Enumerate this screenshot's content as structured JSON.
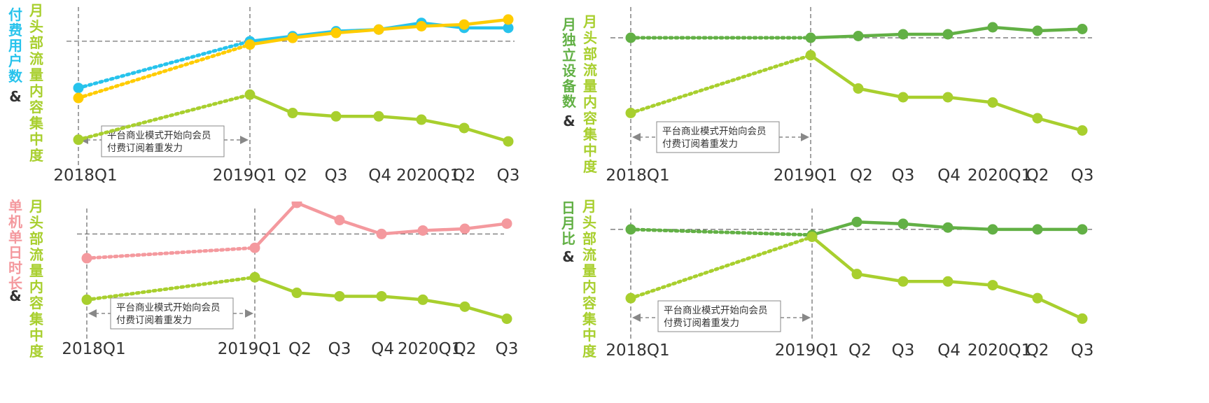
{
  "colors": {
    "green_main": "#a8cf2e",
    "green_dark": "#62b045",
    "cyan": "#27c3ec",
    "yellow": "#ffcc00",
    "pink": "#f4999e",
    "guide": "#666666"
  },
  "chart_data": [
    {
      "type": "line",
      "annotation": [
        "平台商业模式开始向会员",
        "付费订阅着重发力"
      ],
      "x_tick_labels": [
        "2018Q1",
        "2019Q1",
        "Q2",
        "Q3",
        "Q4",
        "2020Q1",
        "Q2",
        "Q3"
      ],
      "y_label_left": "付费用户数",
      "y_label_join": "&",
      "y_label_right": "月头部流量内容集中度",
      "series": [
        {
          "key": "s1",
          "values": [
            72,
            100,
            103,
            106,
            107,
            111,
            108,
            108
          ],
          "color": "#27c3ec"
        },
        {
          "key": "s2",
          "values": [
            66,
            98,
            102,
            105,
            107,
            109,
            110,
            113
          ],
          "color": "#ffcc00"
        },
        {
          "key": "s3",
          "values": [
            41,
            68,
            57,
            55,
            55,
            53,
            48,
            40
          ],
          "color": "#a8cf2e"
        }
      ]
    },
    {
      "type": "line",
      "annotation": [
        "平台商业模式开始向会员",
        "付费订阅着重发力"
      ],
      "x_tick_labels": [
        "2018Q1",
        "2019Q1",
        "Q2",
        "Q3",
        "Q4",
        "2020Q1",
        "Q2",
        "Q3"
      ],
      "y_label_left": "月独立设备数",
      "y_label_join": "&",
      "y_label_right": "月头部流量内容集中度",
      "series": [
        {
          "key": "s1",
          "values": [
            100,
            100,
            101,
            102,
            102,
            106,
            104,
            105
          ],
          "color": "#62b045"
        },
        {
          "key": "s2",
          "values": [
            57,
            90,
            71,
            66,
            66,
            63,
            54,
            47
          ],
          "color": "#a8cf2e"
        }
      ]
    },
    {
      "type": "line",
      "annotation": [
        "平台商业模式开始向会员",
        "付费订阅着重发力"
      ],
      "x_tick_labels": [
        "2018Q1",
        "2019Q1",
        "Q2",
        "Q3",
        "Q4",
        "2020Q1",
        "Q2",
        "Q3"
      ],
      "y_label_left": "单机单日时长",
      "y_label_join": "&",
      "y_label_right": "月头部流量内容集中度",
      "series": [
        {
          "key": "s1",
          "values": [
            90,
            96,
            122,
            112,
            104,
            106,
            107,
            110
          ],
          "color": "#f4999e"
        },
        {
          "key": "s2",
          "values": [
            66,
            79,
            70,
            68,
            68,
            66,
            62,
            55
          ],
          "color": "#a8cf2e"
        }
      ]
    },
    {
      "type": "line",
      "annotation": [
        "平台商业模式开始向会员",
        "付费订阅着重发力"
      ],
      "x_tick_labels": [
        "2018Q1",
        "2019Q1",
        "Q2",
        "Q3",
        "Q4",
        "2020Q1",
        "Q2",
        "Q3"
      ],
      "y_label_left": "日月比",
      "y_label_join": "&",
      "y_label_right": "月头部流量内容集中度",
      "series": [
        {
          "key": "s1",
          "values": [
            100,
            97,
            104,
            103,
            101,
            100,
            100,
            100
          ],
          "color": "#62b045"
        },
        {
          "key": "s2",
          "values": [
            63,
            96,
            76,
            72,
            72,
            70,
            63,
            52
          ],
          "color": "#a8cf2e"
        }
      ]
    }
  ]
}
